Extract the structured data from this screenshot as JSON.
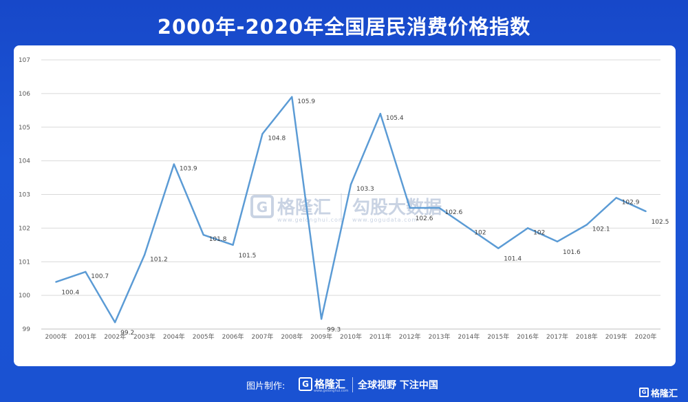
{
  "title": "2000年-2020年全国居民消费价格指数",
  "chart_data": {
    "type": "line",
    "title": "2000年-2020年全国居民消费价格指数",
    "xlabel": "",
    "ylabel": "",
    "ylim": [
      99,
      107
    ],
    "yticks": [
      "99",
      "100",
      "101",
      "102",
      "103",
      "104",
      "105",
      "106",
      "107"
    ],
    "grid": true,
    "categories": [
      "2000年",
      "2001年",
      "2002年",
      "2003年",
      "2004年",
      "2005年",
      "2006年",
      "2007年",
      "2008年",
      "2009年",
      "2010年",
      "2011年",
      "2012年",
      "2013年",
      "2014年",
      "2015年",
      "2016年",
      "2017年",
      "2018年",
      "2019年",
      "2020年"
    ],
    "series": [
      {
        "name": "全国居民消费价格指数",
        "color": "#5b9bd5",
        "values": [
          100.4,
          100.7,
          99.2,
          101.2,
          103.9,
          101.8,
          101.5,
          104.8,
          105.9,
          99.3,
          103.3,
          105.4,
          102.6,
          102.6,
          102,
          101.4,
          102,
          101.6,
          102.1,
          102.9,
          102.5
        ],
        "labels": [
          "100.4",
          "100.7",
          "99.2",
          "101.2",
          "103.9",
          "101.8",
          "101.5",
          "104.8",
          "105.9",
          "99.3",
          "103.3",
          "105.4",
          "102.6",
          "102.6",
          "102",
          "101.4",
          "102",
          "101.6",
          "102.1",
          "102.9",
          "102.5"
        ]
      }
    ]
  },
  "watermark": {
    "brand": "格隆汇",
    "brand_sub": "www.gelonghui.com",
    "data_brand": "勾股大数据",
    "data_url": "www.gogudata.com"
  },
  "footer": {
    "credit": "图片制作:",
    "logo_letter": "G",
    "brand": "格隆汇",
    "brand_sub": "www.gelonghui.com",
    "slogan": "全球视野 下注中国"
  },
  "corner": {
    "logo_letter": "G",
    "brand": "格隆汇"
  },
  "colors": {
    "background": "#1a4fd0",
    "line": "#5b9bd5",
    "grid": "#d9d9d9"
  }
}
